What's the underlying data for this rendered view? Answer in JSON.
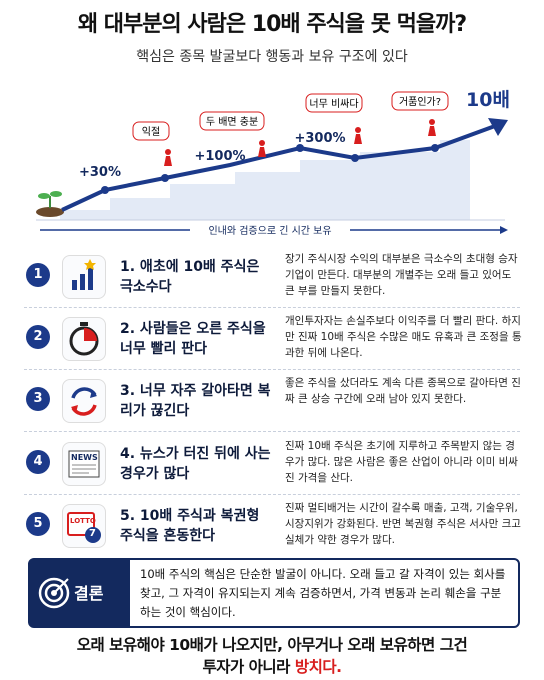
{
  "header": {
    "title": "왜 대부분의 사람은 10배 주식을 못 먹을까?",
    "subtitle": "핵심은 종목 발굴보다 행동과 보유 구조에 있다"
  },
  "hero": {
    "gains": [
      "+30%",
      "+100%",
      "+300%"
    ],
    "target": "10배",
    "bubbles": [
      "익절",
      "두 배면 충분",
      "너무 비싸다",
      "거품인가?"
    ],
    "arrow_label": "인내와 검증으로 긴 시간 보유"
  },
  "items": [
    {
      "number": "1",
      "title": "1. 애초에 10배 주식은 극소수다",
      "description": "장기 주식시장 수익의 대부분은 극소수의 초대형 승자 기업이 만든다. 대부분의 개별주는 오래 들고 있어도 큰 부를 만들지 못한다."
    },
    {
      "number": "2",
      "title": "2. 사람들은 오른 주식을 너무 빨리 판다",
      "description": "개인투자자는 손실주보다 이익주를 더 빨리 판다. 하지만 진짜 10배 주식은 수많은 매도 유혹과 큰 조정을 통과한 뒤에 나온다."
    },
    {
      "number": "3",
      "title": "3. 너무 자주 갈아타면 복리가 끊긴다",
      "description": "좋은 주식을 샀더라도 계속 다른 종목으로 갈아타면 진짜 큰 상승 구간에 오래 남아 있지 못한다."
    },
    {
      "number": "4",
      "title": "4. 뉴스가 터진 뒤에 사는 경우가 많다",
      "description": "진짜 10배 주식은 초기에 지루하고 주목받지 않는 경우가 많다. 많은 사람은 좋은 산업이 아니라 이미 비싸진 가격을 산다.",
      "icon_text": "NEWS"
    },
    {
      "number": "5",
      "title": "5. 10배 주식과 복권형 주식을 혼동한다",
      "description": "진짜 멀티배거는 시간이 갈수록 매출, 고객, 기술우위, 시장지위가 강화된다. 반면 복권형 주식은 서사만 크고 실체가 약한 경우가 많다.",
      "icon_text": "LOTTO",
      "icon_number": "7"
    }
  ],
  "conclusion": {
    "label": "결론",
    "text": "10배 주식의 핵심은 단순한 발굴이 아니다. 오래 들고 갈 자격이 있는 회사를 찾고, 그 자격이 유지되는지 계속 검증하면서, 가격 변동과 논리 훼손을 구분하는 것이 핵심이다."
  },
  "footer": {
    "line1": "오래 보유해야 10배가 나오지만, 아무거나 오래 보유하면 그건",
    "line2": "투자가 아니라",
    "highlight": "방치다."
  }
}
